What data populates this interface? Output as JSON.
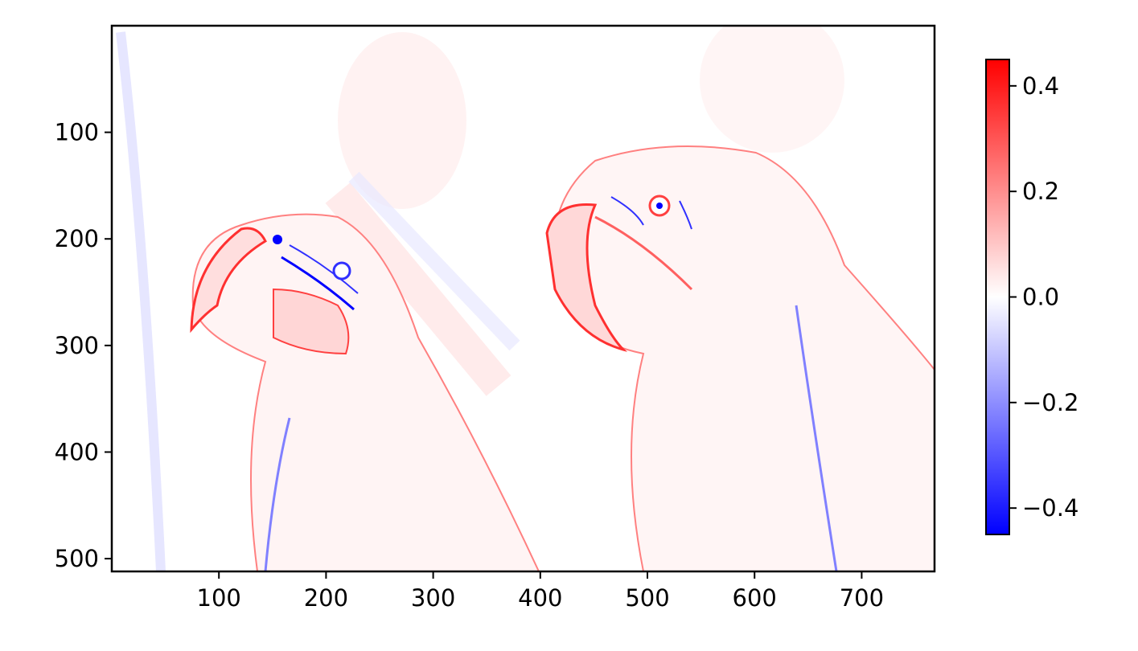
{
  "chart_data": {
    "type": "heatmap",
    "title": "",
    "xlabel": "",
    "ylabel": "",
    "image_width": 768,
    "image_height": 512,
    "xlim": [
      0,
      768
    ],
    "ylim": [
      512,
      0
    ],
    "x_ticks": [
      100,
      200,
      300,
      400,
      500,
      600,
      700
    ],
    "x_tick_labels": [
      "100",
      "200",
      "300",
      "400",
      "500",
      "600",
      "700"
    ],
    "y_ticks": [
      100,
      200,
      300,
      400,
      500
    ],
    "y_tick_labels": [
      "100",
      "200",
      "300",
      "400",
      "500"
    ],
    "colormap": "bwr",
    "colormap_colors": {
      "low": "#0000ff",
      "mid": "#ffffff",
      "high": "#ff0000"
    },
    "colorbar": {
      "vmin": -0.45,
      "vmax": 0.45,
      "ticks": [
        0.4,
        0.2,
        0.0,
        -0.2,
        -0.4
      ],
      "tick_labels": [
        "0.4",
        "0.2",
        "0.0",
        "−0.2",
        "−0.4"
      ]
    },
    "grid": false,
    "subject": "two parrots (edge/gradient response)"
  }
}
